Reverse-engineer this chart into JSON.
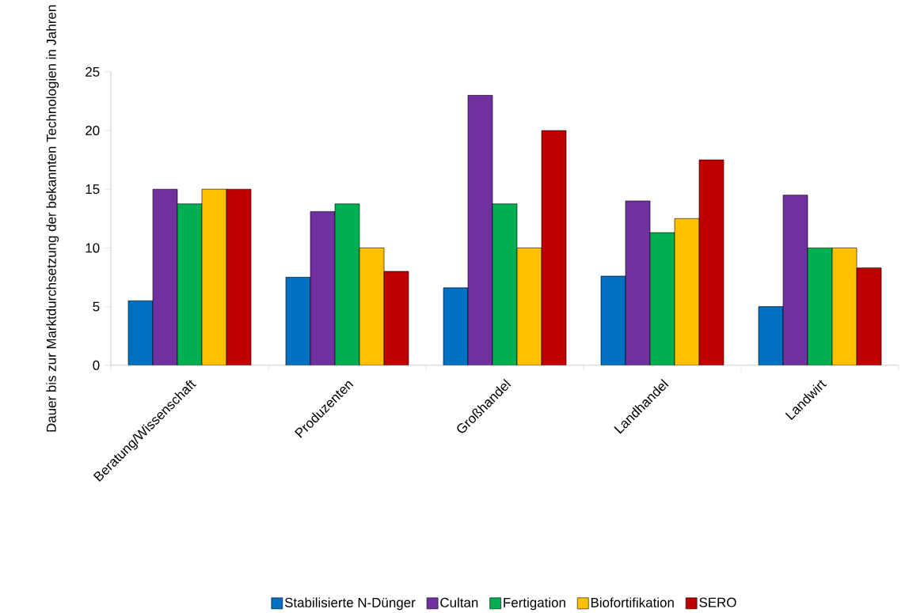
{
  "chart_data": {
    "type": "bar",
    "ylabel": "Dauer bis zur Marktdurchsetzung der bekannten Technologien in Jahren",
    "categories": [
      "Beratung/Wissenschaft",
      "Produzenten",
      "Großhandel",
      "Landhandel",
      "Landwirt"
    ],
    "series": [
      {
        "name": "Stabilisierte N-Dünger",
        "color": "#0070c0",
        "values": [
          5.5,
          7.5,
          6.6,
          7.6,
          5
        ]
      },
      {
        "name": "Cultan",
        "color": "#7030a0",
        "values": [
          15,
          13.1,
          23,
          14,
          14.5
        ]
      },
      {
        "name": "Fertigation",
        "color": "#00b050",
        "values": [
          13.75,
          13.75,
          13.75,
          11.3,
          10
        ]
      },
      {
        "name": "Biofortifikation",
        "color": "#ffc000",
        "values": [
          15,
          10,
          10,
          12.5,
          10
        ]
      },
      {
        "name": "SERO",
        "color": "#c00000",
        "values": [
          15,
          8,
          20,
          17.5,
          8.3
        ]
      }
    ],
    "ylim": [
      0,
      25
    ],
    "yticks": [
      0,
      5,
      10,
      15,
      20,
      25
    ],
    "grid": false,
    "legend": "bottom"
  }
}
